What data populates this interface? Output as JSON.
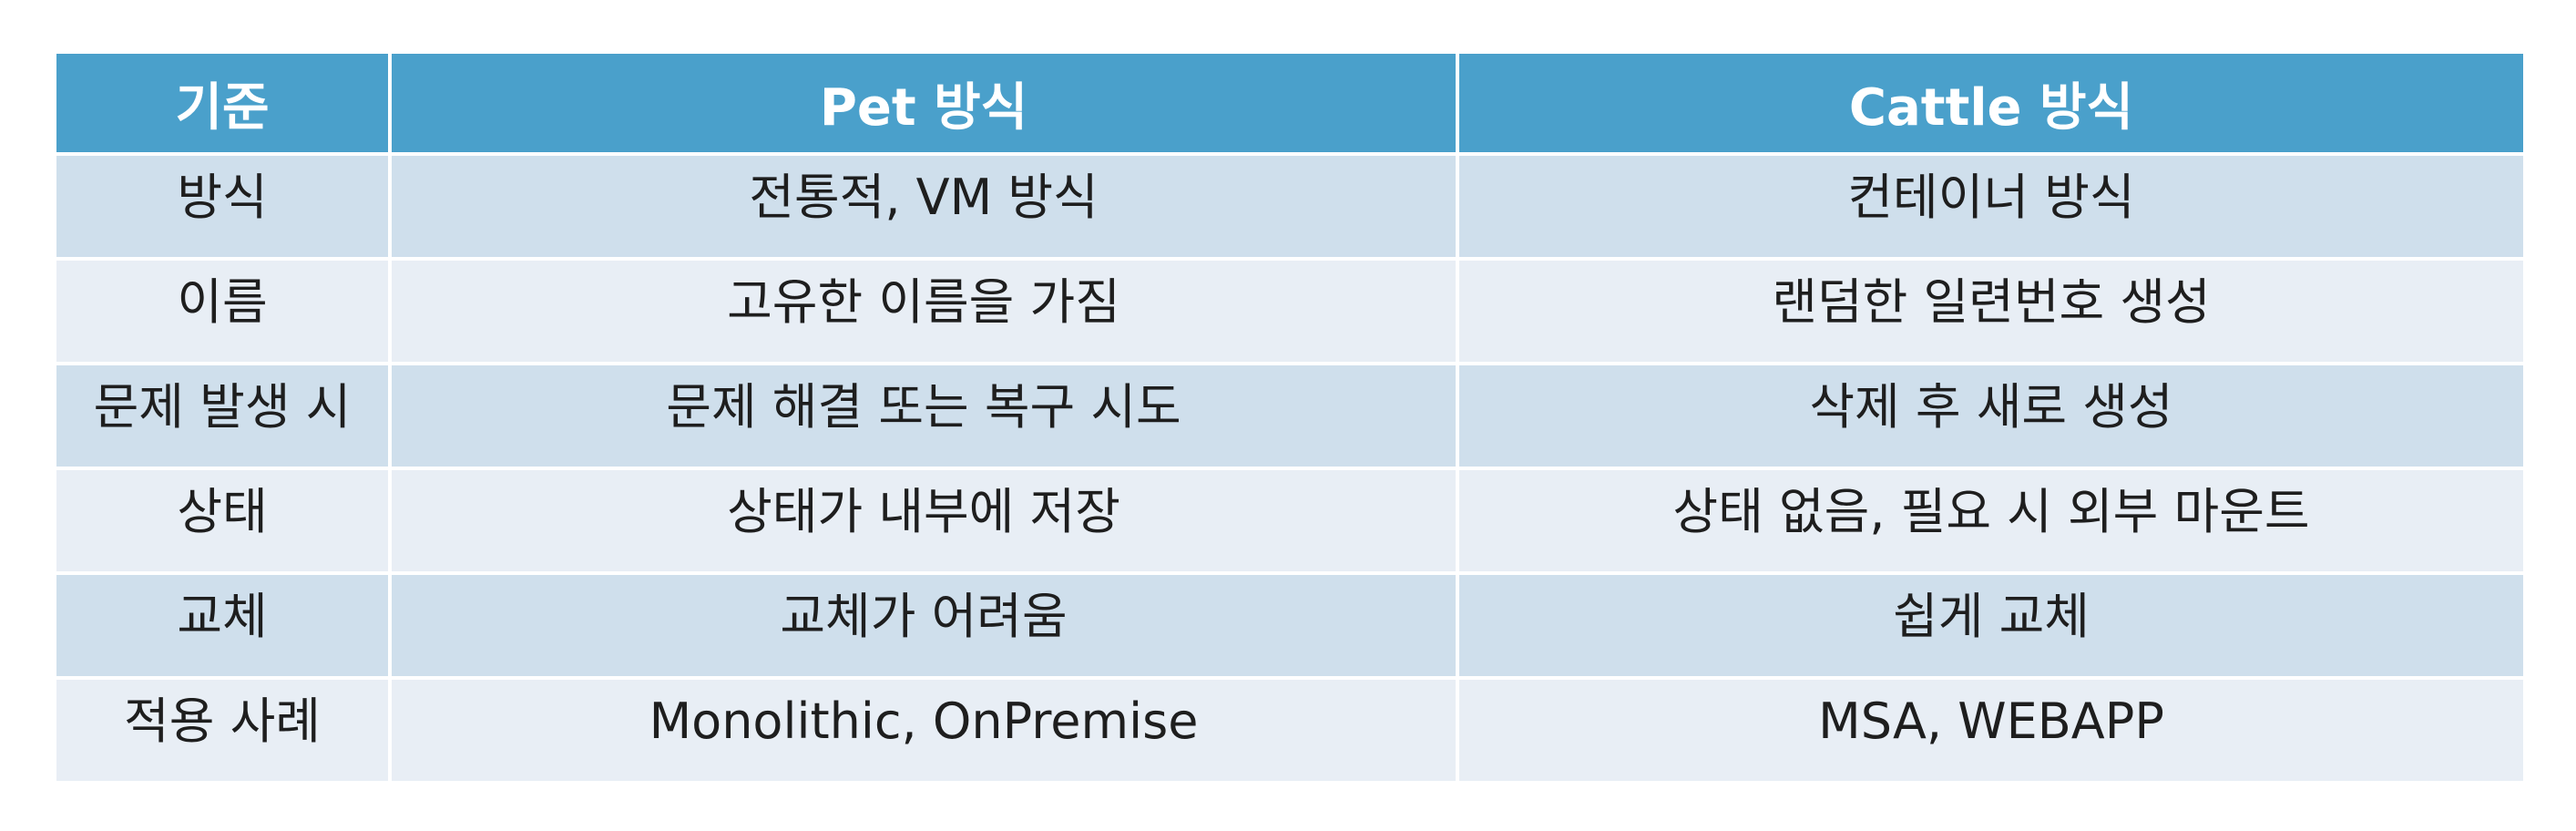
{
  "table": {
    "headers": [
      "기준",
      "Pet 방식",
      "Cattle 방식"
    ],
    "rows": [
      [
        "방식",
        "전통적,  VM 방식",
        "컨테이너 방식"
      ],
      [
        "이름",
        "고유한 이름을 가짐",
        "랜덤한 일련번호 생성"
      ],
      [
        "문제 발생 시",
        "문제 해결 또는 복구 시도",
        "삭제 후 새로 생성"
      ],
      [
        "상태",
        "상태가 내부에 저장",
        "상태 없음, 필요 시 외부 마운트"
      ],
      [
        "교체",
        "교체가 어려움",
        "쉽게 교체"
      ],
      [
        "적용 사례",
        "Monolithic, OnPremise",
        "MSA, WEBAPP"
      ]
    ]
  },
  "colors": {
    "header_bg": "#4aa0cb",
    "row_odd_bg": "#cfdfec",
    "row_even_bg": "#e8eef5",
    "text": "#1e1e1e"
  }
}
